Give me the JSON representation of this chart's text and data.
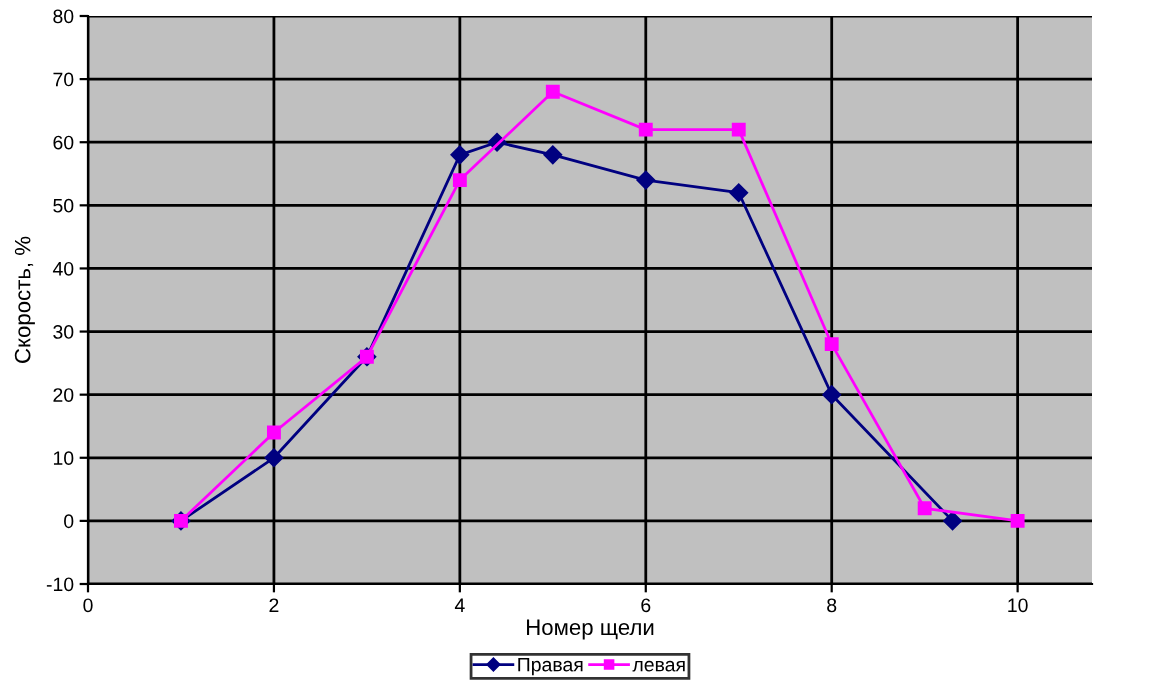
{
  "chart_data": {
    "type": "line",
    "xlabel": "Номер щели",
    "ylabel": "Скорость, %",
    "series": [
      {
        "name": "Правая",
        "color": "#000080",
        "marker": "diamond",
        "x": [
          1,
          2,
          3,
          4,
          4.4,
          5,
          6,
          7,
          8,
          9.3
        ],
        "values": [
          0,
          10,
          26,
          58,
          60,
          58,
          54,
          52,
          20,
          0
        ]
      },
      {
        "name": "левая",
        "color": "#ff00ff",
        "marker": "square",
        "x": [
          1,
          2,
          3,
          4,
          5,
          6,
          7,
          8,
          9,
          10
        ],
        "values": [
          0,
          14,
          26,
          54,
          68,
          62,
          62,
          28,
          2,
          0
        ]
      }
    ],
    "xlim": [
      0,
      10.8
    ],
    "xticks": [
      0,
      2,
      4,
      6,
      8,
      10
    ],
    "ylim": [
      -10,
      80
    ],
    "yticks": [
      -10,
      0,
      10,
      20,
      30,
      40,
      50,
      60,
      70,
      80
    ],
    "grid": true,
    "legend": "bottom",
    "line_style": "solid"
  }
}
